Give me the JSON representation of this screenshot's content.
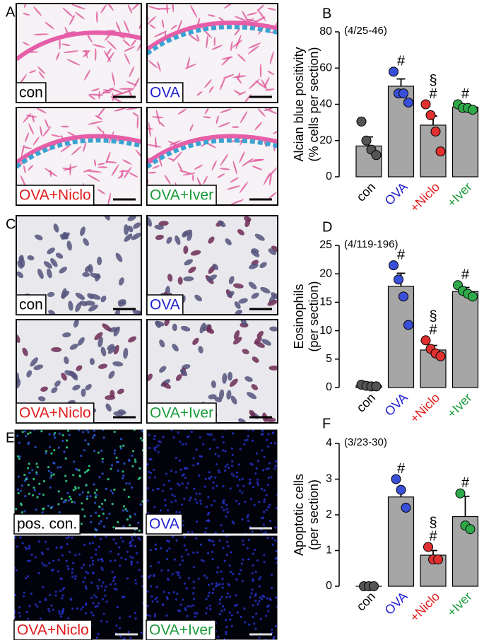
{
  "image_panels": [
    {
      "letter": "A",
      "images": [
        {
          "label": "con",
          "color": "#000000"
        },
        {
          "label": "OVA",
          "color": "#1f1fd0"
        },
        {
          "label": "OVA+Niclo",
          "color": "#e01b1b"
        },
        {
          "label": "OVA+Iver",
          "color": "#1a9a3a"
        }
      ]
    },
    {
      "letter": "C",
      "images": [
        {
          "label": "con",
          "color": "#000000"
        },
        {
          "label": "OVA",
          "color": "#1f1fd0"
        },
        {
          "label": "OVA+Niclo",
          "color": "#e01b1b"
        },
        {
          "label": "OVA+Iver",
          "color": "#1a9a3a"
        }
      ]
    },
    {
      "letter": "E",
      "images": [
        {
          "label": "pos. con.",
          "color": "#000000"
        },
        {
          "label": "OVA",
          "color": "#1f1fd0"
        },
        {
          "label": "OVA+Niclo",
          "color": "#e01b1b"
        },
        {
          "label": "OVA+Iver",
          "color": "#1a9a3a"
        }
      ]
    }
  ],
  "chart_data": [
    {
      "type": "bar",
      "panel": "B",
      "annotation": "(4/25-46)",
      "y_label": [
        "Alcian blue positivity",
        "(% cells per section)"
      ],
      "categories": [
        "con",
        "OVA",
        "+Niclo",
        "+Iver"
      ],
      "category_colors": [
        "#000000",
        "#1f1fd0",
        "#e01b1b",
        "#1a9a3a"
      ],
      "values": [
        17,
        50,
        28.5,
        38.5
      ],
      "errors": [
        5,
        4,
        5,
        1.5
      ],
      "points": [
        [
          30.5,
          20,
          15,
          12
        ],
        [
          58,
          46,
          46,
          41
        ],
        [
          40,
          34,
          25,
          14
        ],
        [
          40,
          38,
          38,
          37
        ]
      ],
      "point_colors": [
        "#555555",
        "#3a4fd8",
        "#e03030",
        "#2eaa4a"
      ],
      "sig_marks": [
        null,
        [
          "#"
        ],
        [
          "§",
          "#"
        ],
        [
          "#"
        ]
      ],
      "color": "#a6a6a6",
      "ylim": [
        0,
        80
      ],
      "yticks": [
        0,
        20,
        40,
        60,
        80
      ]
    },
    {
      "type": "bar",
      "panel": "D",
      "annotation": "(4/119-196)",
      "y_label": [
        "Eosinophils",
        "(per section)"
      ],
      "categories": [
        "con",
        "OVA",
        "+Niclo",
        "+Iver"
      ],
      "category_colors": [
        "#000000",
        "#1f1fd0",
        "#e01b1b",
        "#1a9a3a"
      ],
      "values": [
        0.3,
        17.8,
        6.6,
        16.9
      ],
      "errors": [
        0.2,
        2.3,
        0.8,
        0.7
      ],
      "points": [
        [
          0.5,
          0.3,
          0.2,
          0.2
        ],
        [
          21.5,
          19,
          16,
          11
        ],
        [
          8.3,
          6.8,
          6,
          5.5
        ],
        [
          18,
          17,
          16.5,
          16
        ]
      ],
      "point_colors": [
        "#555555",
        "#3a4fd8",
        "#e03030",
        "#2eaa4a"
      ],
      "sig_marks": [
        null,
        [
          "#"
        ],
        [
          "§",
          "#"
        ],
        [
          "#"
        ]
      ],
      "color": "#a6a6a6",
      "ylim": [
        0,
        25
      ],
      "yticks": [
        0,
        5,
        10,
        15,
        20,
        25
      ]
    },
    {
      "type": "bar",
      "panel": "F",
      "annotation": "(3/23-30)",
      "y_label": [
        "Apoptotic cells",
        "(per section)"
      ],
      "categories": [
        "con",
        "OVA",
        "+Niclo",
        "+Iver"
      ],
      "category_colors": [
        "#000000",
        "#1f1fd0",
        "#e01b1b",
        "#1a9a3a"
      ],
      "values": [
        0,
        2.5,
        0.87,
        1.95
      ],
      "errors": [
        0,
        0.27,
        0.13,
        0.57
      ],
      "points": [
        [
          0,
          0,
          0
        ],
        [
          3.0,
          2.7,
          2.2
        ],
        [
          1.1,
          0.75,
          0.75
        ],
        [
          2.6,
          1.7,
          1.6
        ]
      ],
      "point_colors": [
        "#555555",
        "#3a4fd8",
        "#e03030",
        "#2eaa4a"
      ],
      "sig_marks": [
        null,
        [
          "#"
        ],
        [
          "§",
          "#"
        ],
        [
          "#"
        ]
      ],
      "color": "#a6a6a6",
      "ylim": [
        0,
        4
      ],
      "yticks": [
        0,
        1,
        2,
        3,
        4
      ]
    }
  ]
}
